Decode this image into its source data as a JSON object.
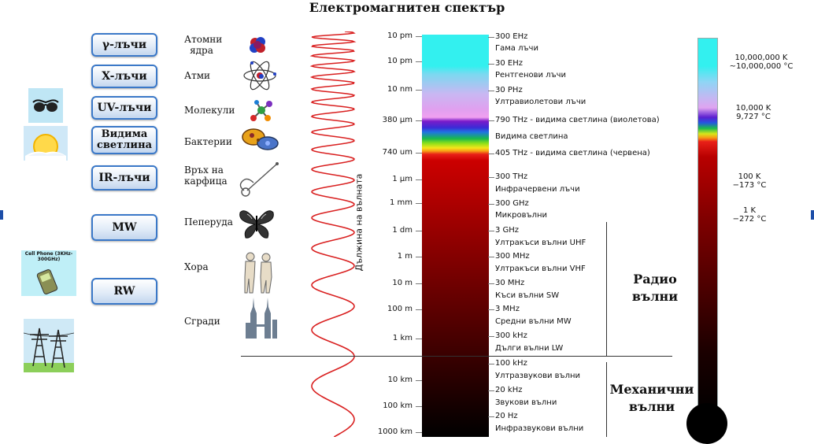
{
  "title": "Електромагнитен спектър",
  "bands": [
    {
      "label": "γ-лъчи"
    },
    {
      "label": "X-лъчи"
    },
    {
      "label": "UV-лъчи"
    },
    {
      "label": "Видима светлина"
    },
    {
      "label": "IR-лъчи"
    },
    {
      "label": "MW"
    },
    {
      "label": "RW"
    }
  ],
  "objects": [
    {
      "label": "Атомни ядра",
      "icon": "atomic-nucleus-icon"
    },
    {
      "label": "Атми",
      "icon": "atom-icon"
    },
    {
      "label": "Молекули",
      "icon": "molecule-icon"
    },
    {
      "label": "Бактерии",
      "icon": "bacteria-icon"
    },
    {
      "label": "Връх на карфица",
      "icon": "pin-icon"
    },
    {
      "label": "Пеперуда",
      "icon": "butterfly-icon"
    },
    {
      "label": "Хора",
      "icon": "people-icon"
    },
    {
      "label": "Сгради",
      "icon": "buildings-icon"
    }
  ],
  "side_icons": {
    "sunglasses": "sunglasses-icon",
    "sun": "sun-icon",
    "phone_text": "Cell Phone (3KHz-300GHz)",
    "phone": "cell-phone-icon",
    "towers": "power-tower-icon"
  },
  "wave_axis_label": "Дължина на вълната",
  "wavelengths": [
    "10 pm",
    "10 pm",
    "10 nm",
    "380 µm",
    "740 um",
    "1 µm",
    "1 mm",
    "1 dm",
    "1 m",
    "10 m",
    "100 m",
    "1 km",
    "10 km",
    "100 km",
    "1000 km"
  ],
  "frequencies": [
    "300 EHz",
    "Гама лъчи",
    "30 EHz",
    "Рентгенови лъчи",
    "30 PHz",
    "Ултравиолетови лъчи",
    "790 THz - видима светлина (виолетова)",
    "Видима светлина",
    "405 THz - видима светлина (червена)",
    "300 THz",
    "Инфрачервени лъчи",
    "300 GHz",
    "Микровълни",
    "3 GHz",
    "Ултракъси вълни UHF",
    "300 MHz",
    "Ултракъси вълни VHF",
    "30 MHz",
    "Къси вълни SW",
    "3 MHz",
    "Средни вълни MW",
    "300 kHz",
    "Дълги вълни LW",
    "100 kHz",
    "Ултразвукови вълни",
    "20 kHz",
    "Звукови вълни",
    "20 Hz",
    "Инфразвукови вълни"
  ],
  "temperatures": [
    {
      "k": "10,000,000 K",
      "c": "~10,000,000 °C"
    },
    {
      "k": "10,000 K",
      "c": "9,727 °C"
    },
    {
      "k": "100 K",
      "c": "−173 °C"
    },
    {
      "k": "1 K",
      "c": "−272 °C"
    }
  ],
  "sections": {
    "radio": "Радио вълни",
    "mechanical": "Механични вълни"
  },
  "colors": {
    "button_border": "#3a78c8",
    "wave": "#d92020",
    "gamma": "#33f0ef",
    "red_band": "#cc0000",
    "thermometer_bottom": "#000000"
  }
}
